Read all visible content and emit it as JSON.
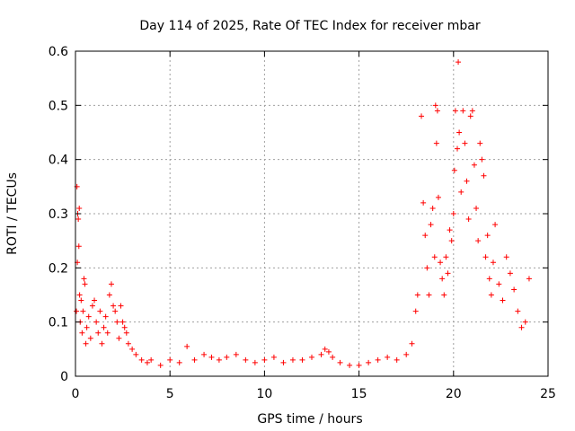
{
  "chart_data": {
    "type": "scatter",
    "title": "Day 114 of 2025, Rate Of TEC Index for receiver mbar",
    "xlabel": "GPS time / hours",
    "ylabel": "ROTI / TECUs",
    "xlim": [
      0,
      25
    ],
    "ylim": [
      0,
      0.6
    ],
    "xticks": [
      0,
      5,
      10,
      15,
      20,
      25
    ],
    "yticks": [
      0,
      0.1,
      0.2,
      0.3,
      0.4,
      0.5,
      0.6
    ],
    "grid": true,
    "legend": "none",
    "marker": "+",
    "color": "#ff0000",
    "series": [
      {
        "points": [
          [
            0.05,
            0.12
          ],
          [
            0.08,
            0.35
          ],
          [
            0.1,
            0.21
          ],
          [
            0.12,
            0.3
          ],
          [
            0.15,
            0.29
          ],
          [
            0.18,
            0.24
          ],
          [
            0.2,
            0.31
          ],
          [
            0.22,
            0.15
          ],
          [
            0.25,
            0.1
          ],
          [
            0.3,
            0.14
          ],
          [
            0.35,
            0.08
          ],
          [
            0.4,
            0.12
          ],
          [
            0.45,
            0.18
          ],
          [
            0.5,
            0.17
          ],
          [
            0.55,
            0.06
          ],
          [
            0.6,
            0.09
          ],
          [
            0.7,
            0.11
          ],
          [
            0.8,
            0.07
          ],
          [
            0.9,
            0.13
          ],
          [
            1.0,
            0.14
          ],
          [
            1.1,
            0.1
          ],
          [
            1.2,
            0.08
          ],
          [
            1.3,
            0.12
          ],
          [
            1.4,
            0.06
          ],
          [
            1.5,
            0.09
          ],
          [
            1.6,
            0.11
          ],
          [
            1.7,
            0.08
          ],
          [
            1.8,
            0.15
          ],
          [
            1.9,
            0.17
          ],
          [
            2.0,
            0.13
          ],
          [
            2.1,
            0.12
          ],
          [
            2.2,
            0.1
          ],
          [
            2.3,
            0.07
          ],
          [
            2.4,
            0.13
          ],
          [
            2.5,
            0.1
          ],
          [
            2.6,
            0.09
          ],
          [
            2.7,
            0.08
          ],
          [
            2.8,
            0.06
          ],
          [
            3.0,
            0.05
          ],
          [
            3.2,
            0.04
          ],
          [
            3.5,
            0.03
          ],
          [
            3.8,
            0.025
          ],
          [
            4.0,
            0.03
          ],
          [
            4.5,
            0.02
          ],
          [
            5.0,
            0.03
          ],
          [
            5.5,
            0.025
          ],
          [
            5.9,
            0.055
          ],
          [
            6.3,
            0.03
          ],
          [
            6.8,
            0.04
          ],
          [
            7.2,
            0.035
          ],
          [
            7.6,
            0.03
          ],
          [
            8.0,
            0.035
          ],
          [
            8.5,
            0.04
          ],
          [
            9.0,
            0.03
          ],
          [
            9.5,
            0.025
          ],
          [
            10.0,
            0.03
          ],
          [
            10.5,
            0.035
          ],
          [
            11.0,
            0.025
          ],
          [
            11.5,
            0.03
          ],
          [
            12.0,
            0.03
          ],
          [
            12.5,
            0.035
          ],
          [
            13.0,
            0.04
          ],
          [
            13.2,
            0.05
          ],
          [
            13.4,
            0.045
          ],
          [
            13.6,
            0.035
          ],
          [
            14.0,
            0.025
          ],
          [
            14.5,
            0.02
          ],
          [
            15.0,
            0.02
          ],
          [
            15.5,
            0.025
          ],
          [
            16.0,
            0.03
          ],
          [
            16.5,
            0.035
          ],
          [
            17.0,
            0.03
          ],
          [
            17.5,
            0.04
          ],
          [
            17.8,
            0.06
          ],
          [
            18.0,
            0.12
          ],
          [
            18.1,
            0.15
          ],
          [
            18.3,
            0.48
          ],
          [
            18.4,
            0.32
          ],
          [
            18.5,
            0.26
          ],
          [
            18.6,
            0.2
          ],
          [
            18.7,
            0.15
          ],
          [
            18.8,
            0.28
          ],
          [
            18.9,
            0.31
          ],
          [
            19.0,
            0.22
          ],
          [
            19.05,
            0.5
          ],
          [
            19.1,
            0.43
          ],
          [
            19.15,
            0.49
          ],
          [
            19.2,
            0.33
          ],
          [
            19.3,
            0.21
          ],
          [
            19.4,
            0.18
          ],
          [
            19.5,
            0.15
          ],
          [
            19.6,
            0.22
          ],
          [
            19.7,
            0.19
          ],
          [
            19.8,
            0.27
          ],
          [
            19.9,
            0.25
          ],
          [
            20.0,
            0.3
          ],
          [
            20.05,
            0.38
          ],
          [
            20.1,
            0.49
          ],
          [
            20.2,
            0.42
          ],
          [
            20.25,
            0.58
          ],
          [
            20.3,
            0.45
          ],
          [
            20.4,
            0.34
          ],
          [
            20.5,
            0.49
          ],
          [
            20.6,
            0.43
          ],
          [
            20.7,
            0.36
          ],
          [
            20.8,
            0.29
          ],
          [
            20.9,
            0.48
          ],
          [
            21.0,
            0.49
          ],
          [
            21.1,
            0.39
          ],
          [
            21.2,
            0.31
          ],
          [
            21.3,
            0.25
          ],
          [
            21.4,
            0.43
          ],
          [
            21.5,
            0.4
          ],
          [
            21.6,
            0.37
          ],
          [
            21.7,
            0.22
          ],
          [
            21.8,
            0.26
          ],
          [
            21.9,
            0.18
          ],
          [
            22.0,
            0.15
          ],
          [
            22.1,
            0.21
          ],
          [
            22.2,
            0.28
          ],
          [
            22.4,
            0.17
          ],
          [
            22.6,
            0.14
          ],
          [
            22.8,
            0.22
          ],
          [
            23.0,
            0.19
          ],
          [
            23.2,
            0.16
          ],
          [
            23.4,
            0.12
          ],
          [
            23.6,
            0.09
          ],
          [
            23.8,
            0.1
          ],
          [
            24.0,
            0.18
          ]
        ]
      }
    ]
  }
}
